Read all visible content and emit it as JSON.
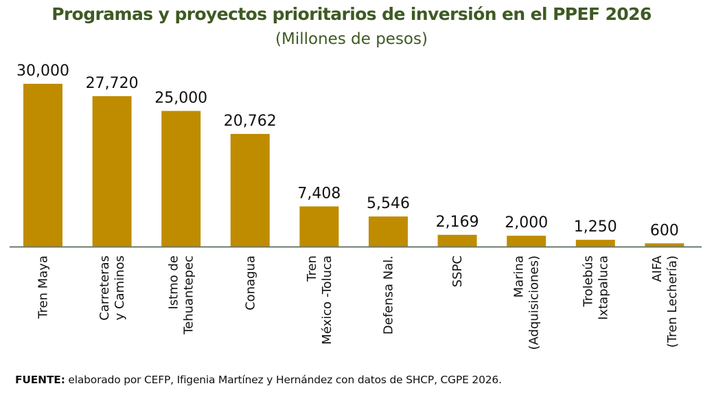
{
  "chart_data": {
    "type": "bar",
    "title": "Programas y proyectos prioritarios de inversión en el PPEF 2026",
    "subtitle": "(Millones de pesos)",
    "xlabel": "",
    "ylabel": "",
    "ylim": [
      0,
      30000
    ],
    "grid": false,
    "legend": "none",
    "bar_color": "#bf8c00",
    "axis_color": "#6b7a6b",
    "categories": [
      [
        "Tren Maya"
      ],
      [
        "Carreteras",
        "y Caminos"
      ],
      [
        "Istmo de",
        "Tehuantepec"
      ],
      [
        "Conagua"
      ],
      [
        "Tren",
        "México -Toluca"
      ],
      [
        "Defensa Nal."
      ],
      [
        "SSPC"
      ],
      [
        "Marina",
        "(Adquisiciones)"
      ],
      [
        "Trolebús",
        "Ixtapaluca"
      ],
      [
        "AIFA",
        "(Tren Lechería)"
      ]
    ],
    "values": [
      30000,
      27720,
      25000,
      20762,
      7408,
      5546,
      2169,
      2000,
      1250,
      600
    ],
    "value_labels": [
      "30,000",
      "27,720",
      "25,000",
      "20,762",
      "7,408",
      "5,546",
      "2,169",
      "2,000",
      "1,250",
      "600"
    ]
  },
  "source": {
    "label": "FUENTE:",
    "text": " elaborado por CEFP, Ifigenia Martínez y Hernández con datos de SHCP, CGPE 2026."
  }
}
